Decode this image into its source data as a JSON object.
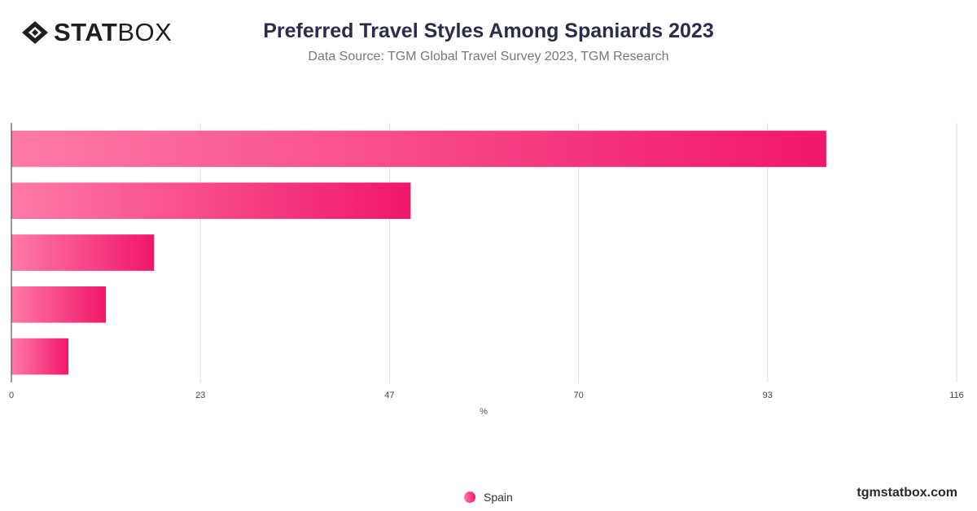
{
  "brand": {
    "logo_bold": "STAT",
    "logo_light": "BOX",
    "watermark": "tgmstatbox.com"
  },
  "header": {
    "title": "Preferred Travel Styles Among Spaniards 2023",
    "subtitle": "Data Source: TGM Global Travel Survey 2023, TGM Research"
  },
  "legend": {
    "label": "Spain",
    "position": "bottom-center"
  },
  "colors": {
    "bar_light": "#ff7aa8",
    "bar_dark": "#f0176a",
    "grid": "#dddddd",
    "axis": "#333333",
    "title": "#2b2b4b"
  },
  "chart_data": {
    "type": "bar",
    "orientation": "horizontal",
    "categories": [
      "",
      "",
      "",
      "",
      ""
    ],
    "series": [
      {
        "name": "Spain",
        "values": [
          100,
          49,
          17.5,
          11.6,
          7
        ]
      }
    ],
    "xlabel": "%",
    "ylabel": "",
    "xlim": [
      0,
      116
    ],
    "x_ticks": [
      "0",
      "23",
      "47",
      "70",
      "93",
      "116"
    ],
    "grid": "vertical"
  }
}
